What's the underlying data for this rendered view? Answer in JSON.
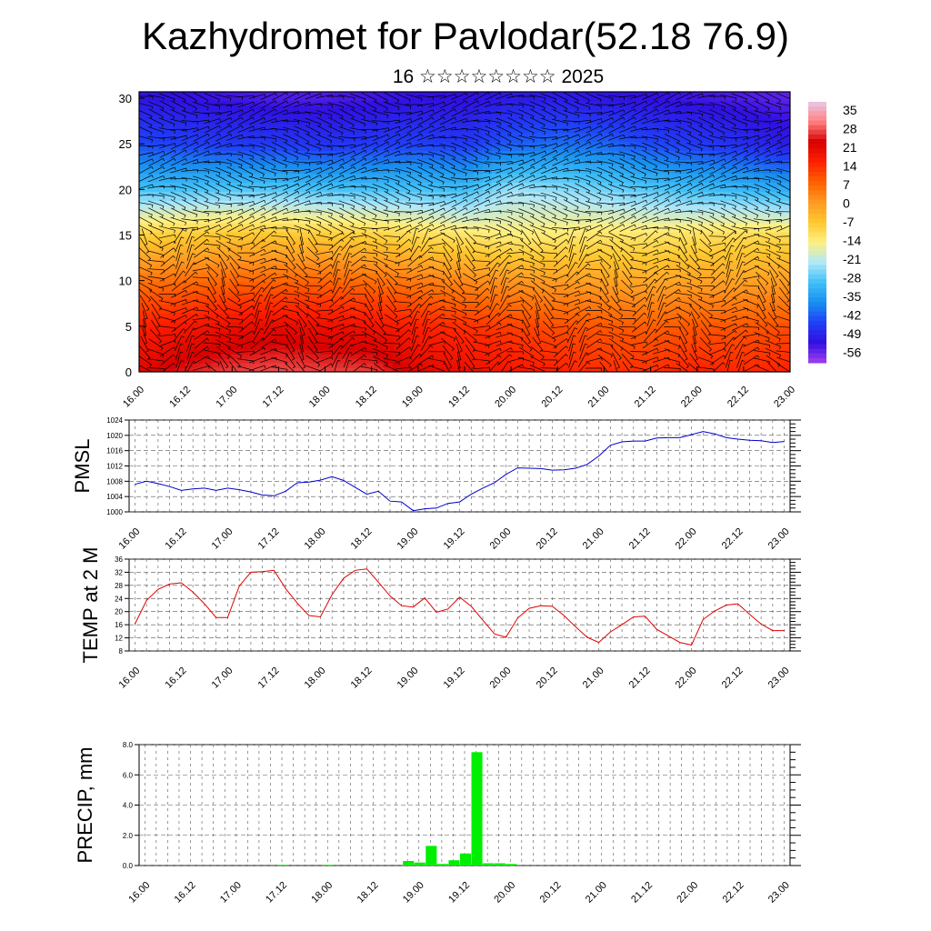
{
  "title": "Kazhydromet for Pavlodar(52.18 76.9)",
  "subtitle": "16 ☆☆☆☆☆☆☆☆ 2025",
  "chart_data": [
    {
      "type": "heatmap",
      "description_free": true,
      "xlabel": "",
      "ylabel": "",
      "x_tick_labels": [
        "16.00",
        "16.12",
        "17.00",
        "17.12",
        "18.00",
        "18.12",
        "19.00",
        "19.12",
        "20.00",
        "20.12",
        "21.00",
        "21.12",
        "22.00",
        "22.12",
        "23.00"
      ],
      "y_ticks": [
        0,
        5,
        10,
        15,
        20,
        25,
        30
      ],
      "ylim": [
        0,
        30.7
      ],
      "colorbar_labels": [
        "35",
        "28",
        "21",
        "14",
        "7",
        "0",
        "-7",
        "-14",
        "-21",
        "-28",
        "-35",
        "-42",
        "-49",
        "-56"
      ],
      "colorbar_range": [
        -63,
        42
      ],
      "color_stops": [
        "#e8c8e8",
        "#ff8080",
        "#d80000",
        "#ff2000",
        "#ff6000",
        "#ff9820",
        "#ffc830",
        "#fff080",
        "#b0e8f8",
        "#40c0f8",
        "#1890f0",
        "#2040f8",
        "#3010e0",
        "#a040f0"
      ],
      "temperature_grid_by_height": {
        "heights": [
          0,
          5,
          10,
          15,
          20,
          25,
          30
        ],
        "columns_x": [
          16.0,
          16.5,
          17.0,
          17.5,
          18.0,
          18.5,
          19.0,
          19.5,
          20.0,
          20.5,
          21.0,
          21.5,
          22.0,
          22.5,
          23.0
        ],
        "rows": [
          [
            24,
            28,
            30,
            31,
            30,
            30,
            24,
            22,
            20,
            18,
            16,
            16,
            18,
            17,
            18
          ],
          [
            18,
            20,
            22,
            23,
            22,
            21,
            18,
            16,
            14,
            12,
            11,
            10,
            11,
            11,
            12
          ],
          [
            7,
            8,
            9,
            9,
            9,
            8,
            6,
            4,
            2,
            1,
            0,
            -1,
            0,
            0,
            1
          ],
          [
            -8,
            -7,
            -6,
            -6,
            -7,
            -8,
            -10,
            -12,
            -14,
            -13,
            -12,
            -12,
            -11,
            -10,
            -10
          ],
          [
            -30,
            -30,
            -29,
            -29,
            -30,
            -30,
            -30,
            -31,
            -24,
            -25,
            -27,
            -29,
            -31,
            -32,
            -34
          ],
          [
            -46,
            -47,
            -48,
            -48,
            -49,
            -48,
            -47,
            -48,
            -44,
            -42,
            -43,
            -46,
            -48,
            -50,
            -53
          ],
          [
            -54,
            -55,
            -56,
            -57,
            -57,
            -56,
            -55,
            -55,
            -53,
            -53,
            -54,
            -55,
            -56,
            -57,
            -58
          ]
        ]
      }
    },
    {
      "type": "line",
      "ylabel": "PMSL",
      "ylim": [
        1000,
        1024
      ],
      "y_ticks": [
        1000,
        1004,
        1008,
        1012,
        1016,
        1020,
        1024
      ],
      "x_tick_labels": [
        "16.00",
        "16.12",
        "17.00",
        "17.12",
        "18.00",
        "18.12",
        "19.00",
        "19.12",
        "20.00",
        "20.12",
        "21.00",
        "21.12",
        "22.00",
        "22.12",
        "23.00"
      ],
      "color": "#0000cc",
      "x": [
        0,
        1,
        2,
        3,
        4,
        5,
        6,
        7,
        8,
        9,
        10,
        11,
        12,
        13,
        14,
        15,
        16,
        17,
        18,
        19,
        20,
        21,
        22,
        23,
        24,
        25,
        26,
        27,
        28,
        29,
        30,
        31,
        32,
        33,
        34,
        35,
        36,
        37,
        38,
        39,
        40,
        41,
        42,
        43,
        44,
        45,
        46,
        47,
        48,
        49,
        50,
        51,
        52,
        53,
        54,
        55,
        56
      ],
      "values": [
        1007.2,
        1008.0,
        1007.4,
        1006.6,
        1005.6,
        1006.0,
        1006.2,
        1005.6,
        1006.2,
        1005.8,
        1005.2,
        1004.4,
        1004.2,
        1005.4,
        1007.6,
        1007.8,
        1008.3,
        1009.2,
        1008.2,
        1006.4,
        1004.6,
        1005.4,
        1002.8,
        1002.6,
        1000.3,
        1000.8,
        1001.0,
        1002.2,
        1002.6,
        1004.6,
        1006.2,
        1007.6,
        1009.8,
        1011.5,
        1011.4,
        1011.3,
        1010.9,
        1011.0,
        1011.4,
        1012.4,
        1014.6,
        1017.4,
        1018.3,
        1018.5,
        1018.5,
        1019.3,
        1019.4,
        1019.4,
        1020.2,
        1021.0,
        1020.4,
        1019.4,
        1019.0,
        1018.7,
        1018.6,
        1018.1,
        1018.4
      ]
    },
    {
      "type": "line",
      "ylabel": "TEMP at 2 M",
      "ylim": [
        8,
        36
      ],
      "y_ticks": [
        8,
        12,
        16,
        20,
        24,
        28,
        32,
        36
      ],
      "x_tick_labels": [
        "16.00",
        "16.12",
        "17.00",
        "17.12",
        "18.00",
        "18.12",
        "19.00",
        "19.12",
        "20.00",
        "20.12",
        "21.00",
        "21.12",
        "22.00",
        "22.12",
        "23.00"
      ],
      "color": "#e00000",
      "x": [
        0,
        1,
        2,
        3,
        4,
        5,
        6,
        7,
        8,
        9,
        10,
        11,
        12,
        13,
        14,
        15,
        16,
        17,
        18,
        19,
        20,
        21,
        22,
        23,
        24,
        25,
        26,
        27,
        28,
        29,
        30,
        31,
        32,
        33,
        34,
        35,
        36,
        37,
        38,
        39,
        40,
        41,
        42,
        43,
        44,
        45,
        46,
        47,
        48,
        49,
        50,
        51,
        52,
        53,
        54,
        55,
        56
      ],
      "values": [
        16.2,
        23.4,
        26.8,
        28.4,
        28.8,
        26.0,
        22.4,
        18.2,
        18.2,
        27.8,
        32.0,
        32.2,
        32.6,
        27.0,
        22.6,
        18.8,
        18.4,
        25.2,
        30.2,
        32.6,
        33.0,
        29.0,
        24.8,
        21.8,
        21.4,
        24.2,
        19.8,
        20.8,
        24.4,
        21.6,
        17.4,
        13.2,
        12.2,
        18.0,
        21.0,
        21.8,
        21.6,
        18.8,
        15.4,
        12.2,
        10.6,
        13.8,
        16.0,
        18.4,
        18.6,
        14.6,
        12.6,
        10.6,
        9.8,
        17.6,
        20.2,
        22.0,
        22.4,
        19.2,
        16.2,
        14.2,
        14.2
      ]
    },
    {
      "type": "bar",
      "ylabel": "PRECIP, mm",
      "ylim": [
        0,
        8
      ],
      "y_tick_labels": [
        "0.0",
        "2.0",
        "4.0",
        "6.0",
        "8.0"
      ],
      "x_tick_labels": [
        "16.00",
        "16.12",
        "17.00",
        "17.12",
        "18.00",
        "18.12",
        "19.00",
        "19.12",
        "20.00",
        "20.12",
        "21.00",
        "21.12",
        "22.00",
        "22.12",
        "23.00"
      ],
      "color": "#00ee00",
      "x": [
        11,
        15,
        22,
        23,
        24,
        25,
        26,
        27,
        28,
        29,
        30,
        31
      ],
      "values": [
        0.05,
        0.05,
        0.3,
        0.2,
        1.3,
        0.1,
        0.35,
        0.8,
        7.5,
        0.15,
        0.15,
        0.1
      ]
    }
  ]
}
